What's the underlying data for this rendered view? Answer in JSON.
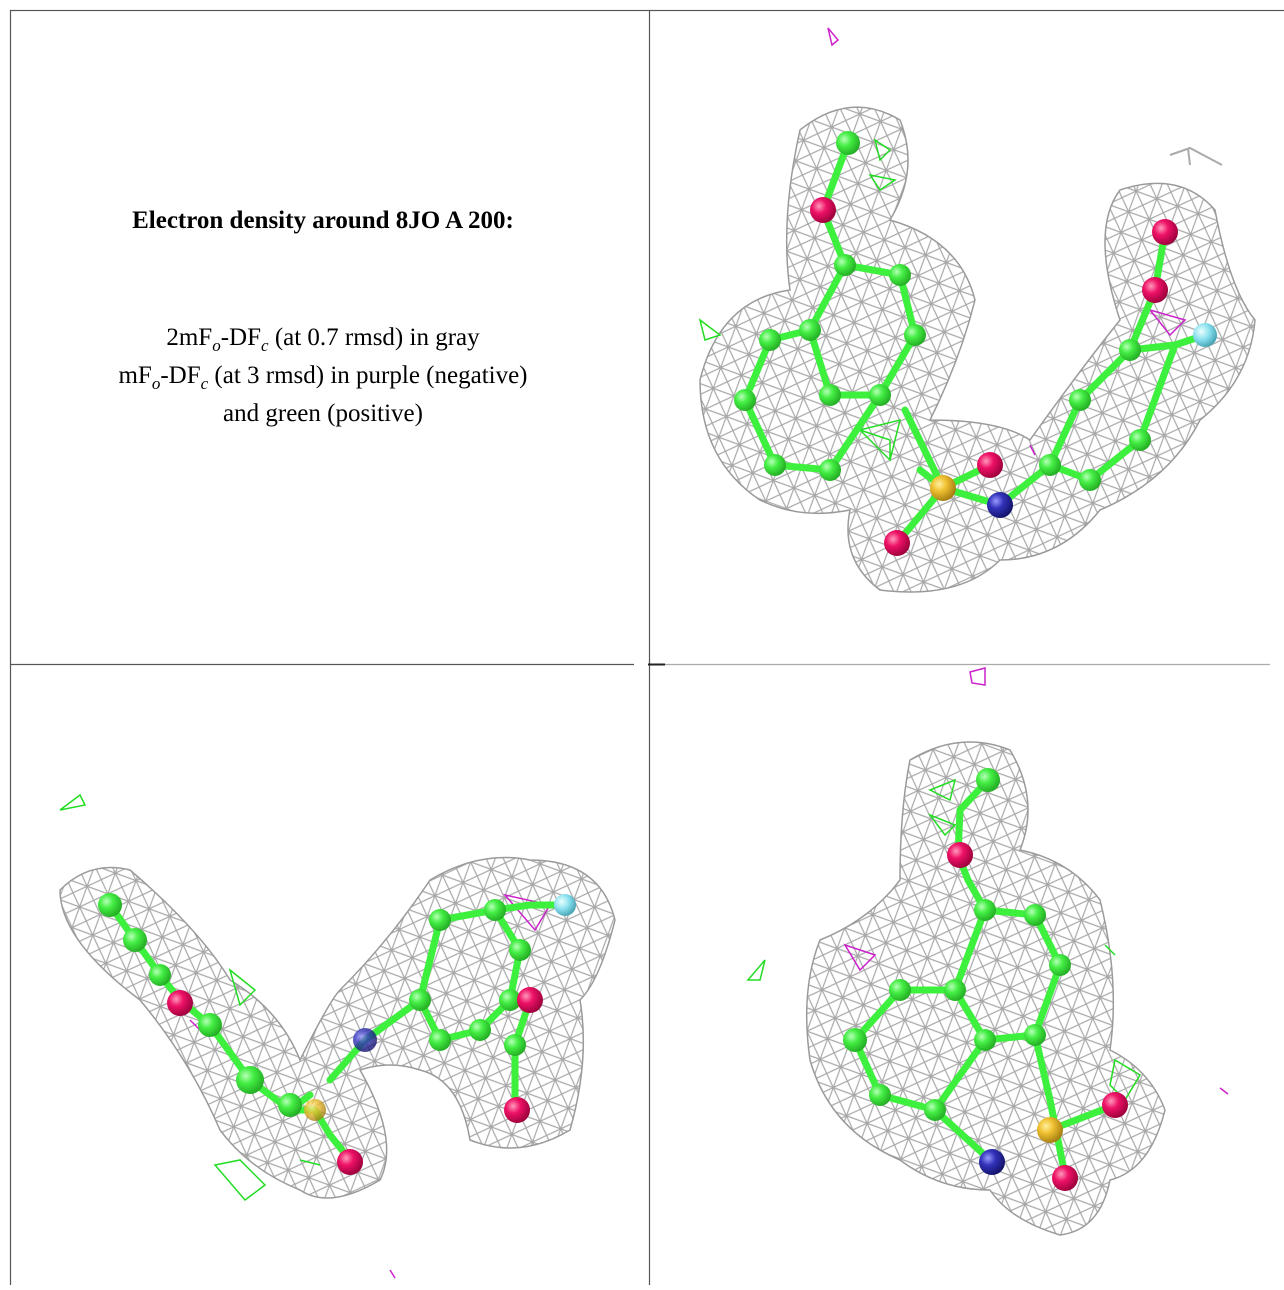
{
  "caption": {
    "title": "Electron density around 8JO A 200:",
    "line1": [
      "2mF",
      "o",
      "-DF",
      "c",
      " (at 0.7 rmsd) in gray"
    ],
    "line2": [
      "mF",
      "o",
      "-DF",
      "c",
      " (at 3 rmsd) in purple (negative)"
    ],
    "line3": "and green (positive)"
  }
}
